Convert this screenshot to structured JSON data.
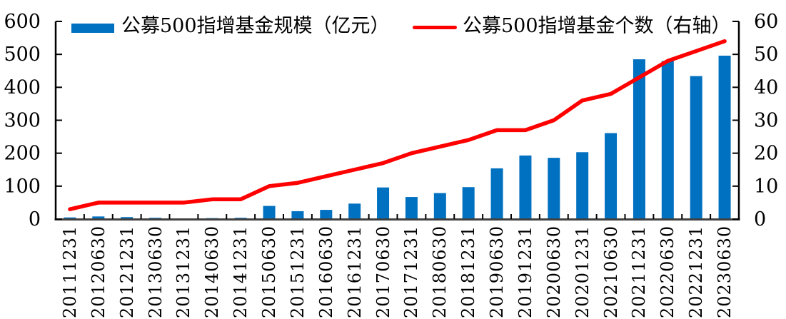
{
  "chart_data": {
    "type": "combo",
    "title": "",
    "categories": [
      "20111231",
      "20120630",
      "20121231",
      "20130630",
      "20131231",
      "20140630",
      "20141231",
      "20150630",
      "20151231",
      "20160630",
      "20161231",
      "20170630",
      "20171231",
      "20180630",
      "20181231",
      "20190630",
      "20191231",
      "20200630",
      "20201231",
      "20210630",
      "20211231",
      "20220630",
      "20221231",
      "20230630"
    ],
    "series": [
      {
        "name": "公募500指增基金规模（亿元）",
        "type": "bar",
        "axis": "left",
        "color": "#0070C0",
        "values": [
          5,
          8,
          6,
          4,
          2,
          3,
          4,
          40,
          24,
          28,
          47,
          96,
          67,
          79,
          97,
          154,
          193,
          186,
          203,
          261,
          485,
          480,
          434,
          496
        ]
      },
      {
        "name": "公募500指增基金个数（右轴）",
        "type": "line",
        "axis": "right",
        "color": "#FF0000",
        "values": [
          3,
          5,
          5,
          5,
          5,
          6,
          6,
          10,
          11,
          13,
          15,
          17,
          20,
          22,
          24,
          27,
          27,
          30,
          36,
          38,
          43,
          48,
          51,
          54
        ]
      }
    ],
    "left_axis": {
      "min": 0,
      "max": 600,
      "step": 100,
      "ticks": [
        0,
        100,
        200,
        300,
        400,
        500,
        600
      ]
    },
    "right_axis": {
      "min": 0,
      "max": 60,
      "step": 10,
      "ticks": [
        0,
        10,
        20,
        30,
        40,
        50,
        60
      ]
    },
    "legend_position": "top",
    "grid": false,
    "xlabel": "",
    "ylabel": ""
  },
  "colors": {
    "bar": "#0070C0",
    "line": "#FF0000",
    "axis_side": "#000000",
    "axis_bottom": "#404040",
    "tick": "#000000",
    "text": "#000000",
    "background": "#FFFFFF"
  }
}
